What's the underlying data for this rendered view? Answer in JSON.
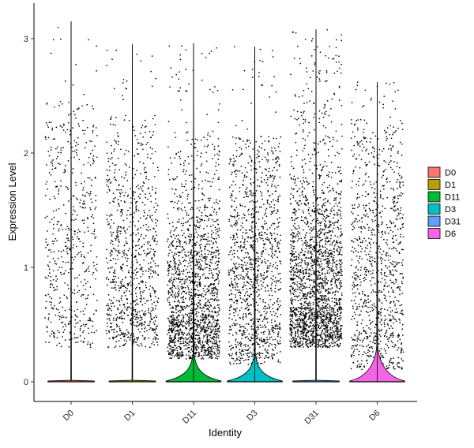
{
  "chart_data": {
    "type": "violin",
    "xlabel": "Identity",
    "ylabel": "Expression Level",
    "ylim": [
      -0.17,
      3.3
    ],
    "yticks": [
      0,
      1,
      2,
      3
    ],
    "categories": [
      "D0",
      "D1",
      "D11",
      "D3",
      "D31",
      "D6"
    ],
    "grid": false,
    "legend_position": "right",
    "series": [
      {
        "name": "D0",
        "color": "#F8766D",
        "max": 3.15,
        "median": 0,
        "jitter_band": [
          0.3,
          2.45
        ],
        "jitter_density": "low",
        "point_count": 550,
        "violin_base_halfwidth": 0.38,
        "violin_bulge_height": 0.0
      },
      {
        "name": "D1",
        "color": "#B79F00",
        "max": 2.95,
        "median": 0,
        "jitter_band": [
          0.3,
          2.35
        ],
        "jitter_density": "medium",
        "point_count": 900,
        "violin_base_halfwidth": 0.38,
        "violin_bulge_height": 0.0
      },
      {
        "name": "D11",
        "color": "#00BA38",
        "max": 2.96,
        "median": 0,
        "jitter_band": [
          0.2,
          2.2
        ],
        "jitter_density": "high",
        "point_count": 1700,
        "violin_base_halfwidth": 0.45,
        "violin_bulge_height": 0.12
      },
      {
        "name": "D3",
        "color": "#00BFC4",
        "max": 2.93,
        "median": 0,
        "jitter_band": [
          0.15,
          2.15
        ],
        "jitter_density": "medium",
        "point_count": 1200,
        "violin_base_halfwidth": 0.45,
        "violin_bulge_height": 0.12
      },
      {
        "name": "D31",
        "color": "#619CFF",
        "max": 3.08,
        "median": 0,
        "jitter_band": [
          0.3,
          2.7
        ],
        "jitter_density": "very-high",
        "point_count": 2100,
        "violin_base_halfwidth": 0.38,
        "violin_bulge_height": 0.0
      },
      {
        "name": "D6",
        "color": "#F564E3",
        "max": 2.62,
        "median": 0,
        "jitter_band": [
          0.1,
          2.3
        ],
        "jitter_density": "medium",
        "point_count": 1000,
        "violin_base_halfwidth": 0.45,
        "violin_bulge_height": 0.18
      }
    ]
  }
}
